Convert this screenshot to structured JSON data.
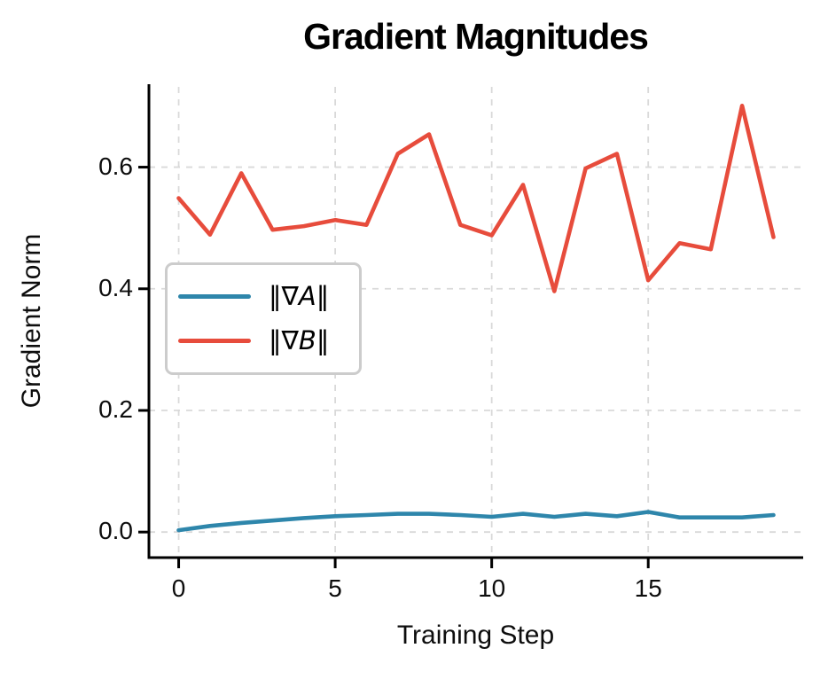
{
  "chart_data": {
    "type": "line",
    "title": "Gradient Magnitudes",
    "xlabel": "Training Step",
    "ylabel": "Gradient Norm",
    "x": [
      0,
      1,
      2,
      3,
      4,
      5,
      6,
      7,
      8,
      9,
      10,
      11,
      12,
      13,
      14,
      15,
      16,
      17,
      18,
      19
    ],
    "series": [
      {
        "name": "‖∇A‖",
        "color": "#2e86ab",
        "values": [
          0.003,
          0.01,
          0.015,
          0.019,
          0.023,
          0.026,
          0.028,
          0.03,
          0.03,
          0.028,
          0.025,
          0.03,
          0.025,
          0.03,
          0.026,
          0.033,
          0.024,
          0.024,
          0.024,
          0.028
        ]
      },
      {
        "name": "‖∇B‖",
        "color": "#e74c3c",
        "values": [
          0.549,
          0.489,
          0.59,
          0.497,
          0.503,
          0.513,
          0.505,
          0.622,
          0.654,
          0.505,
          0.488,
          0.571,
          0.396,
          0.598,
          0.622,
          0.414,
          0.475,
          0.465,
          0.701,
          0.485
        ]
      }
    ],
    "xlim": [
      -0.95,
      19.95
    ],
    "ylim": [
      -0.042,
      0.732
    ],
    "xticks": [
      0,
      5,
      10,
      15
    ],
    "xtick_labels": [
      "0",
      "5",
      "10",
      "15"
    ],
    "yticks": [
      0.0,
      0.2,
      0.4,
      0.6
    ],
    "ytick_labels": [
      "0.0",
      "0.2",
      "0.4",
      "0.6"
    ],
    "grid": "dashed-both-axes",
    "spines": "left-bottom-only",
    "legend_position": "center-left",
    "legend": [
      {
        "pre": "‖∇",
        "var": "A",
        "post": "‖",
        "color": "#2e86ab"
      },
      {
        "pre": "‖∇",
        "var": "B",
        "post": "‖",
        "color": "#e74c3c"
      }
    ]
  }
}
